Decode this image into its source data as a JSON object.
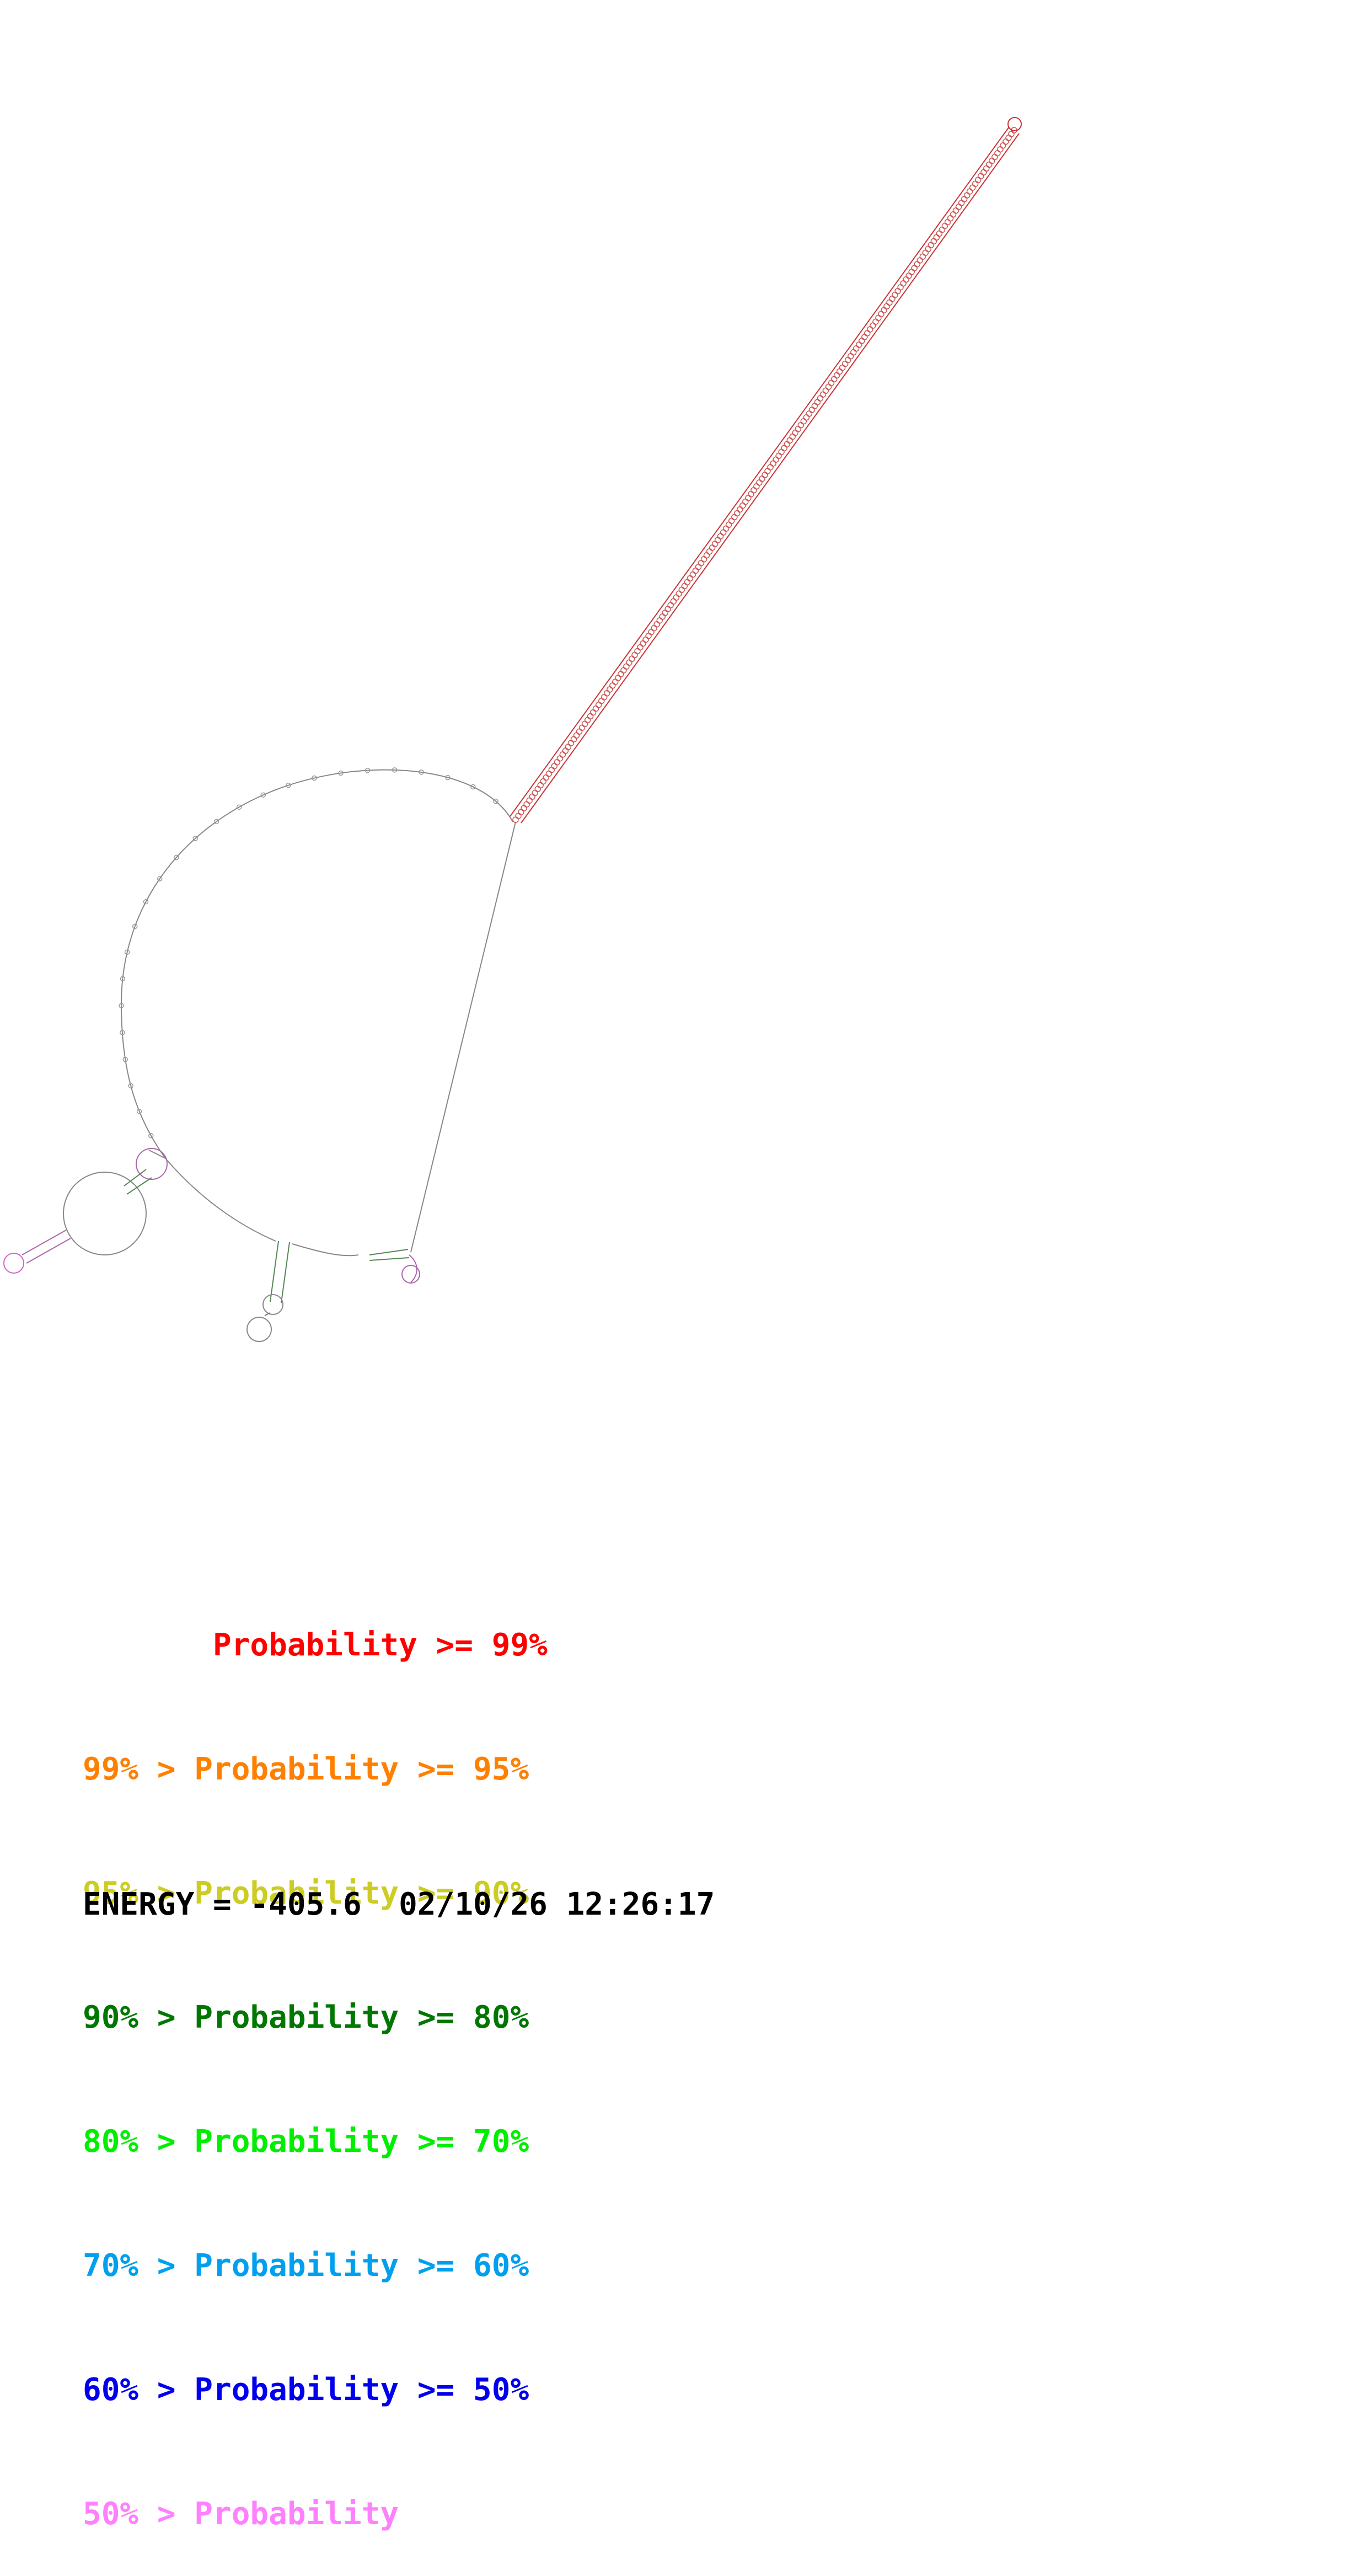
{
  "legend": [
    {
      "text": "       Probability >= 99%",
      "color": "#ff0000"
    },
    {
      "text": "99% > Probability >= 95%",
      "color": "#ff8000"
    },
    {
      "text": "95% > Probability >= 90%",
      "color": "#cccc22"
    },
    {
      "text": "90% > Probability >= 80%",
      "color": "#007700"
    },
    {
      "text": "80% > Probability >= 70%",
      "color": "#00ee00"
    },
    {
      "text": "70% > Probability >= 60%",
      "color": "#00a0ee"
    },
    {
      "text": "60% > Probability >= 50%",
      "color": "#0000ee"
    },
    {
      "text": "50% > Probability",
      "color": "#ff80ff"
    }
  ],
  "footer": {
    "energy_label": "ENERGY = -405.6",
    "timestamp": "02/10/26 12:26:17"
  },
  "structure": {
    "backbone_color": "#777777",
    "stem_color": "#ff0000"
  }
}
